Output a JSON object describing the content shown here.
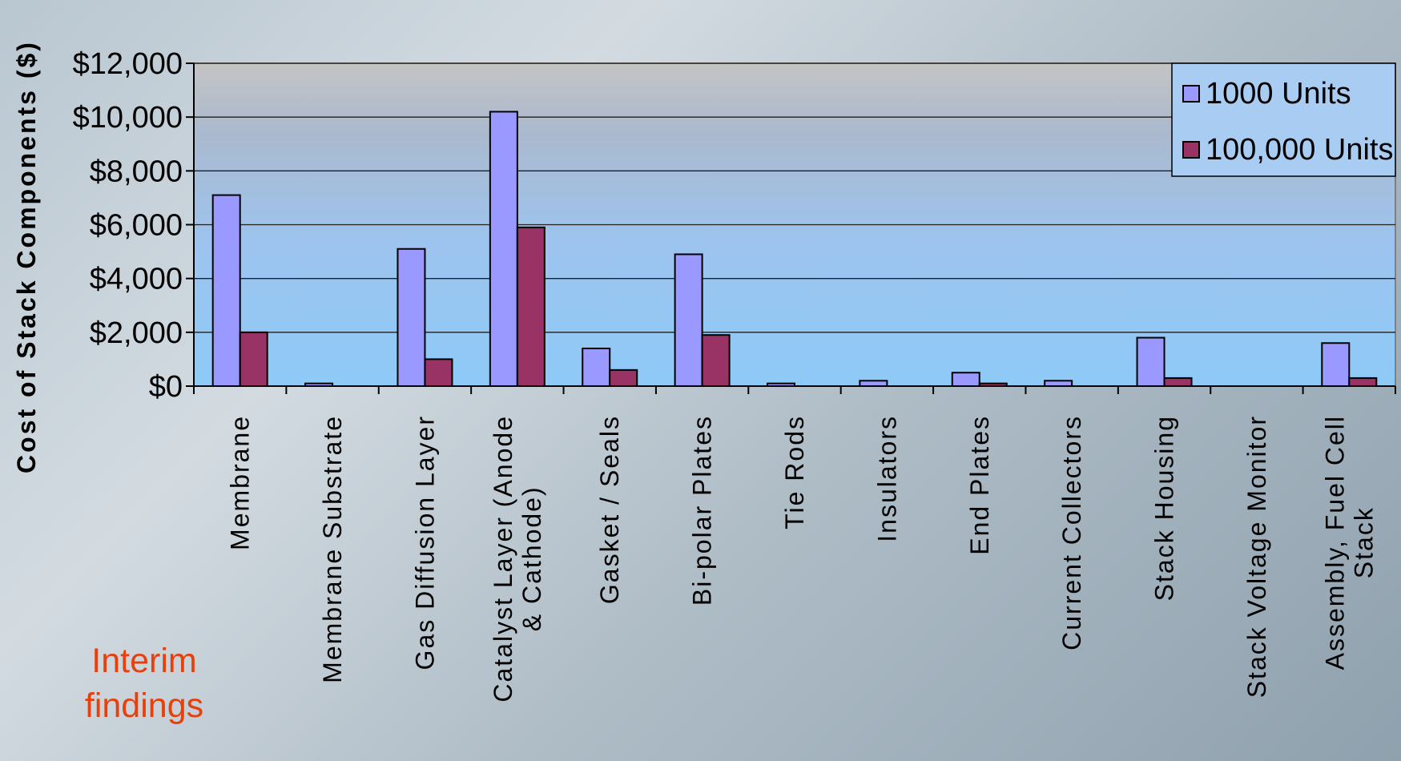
{
  "chart_data": {
    "type": "bar",
    "ylabel": "Cost of Stack Components ($)",
    "ylim": [
      0,
      12000
    ],
    "yticks": [
      0,
      2000,
      4000,
      6000,
      8000,
      10000,
      12000
    ],
    "ytick_labels": [
      "$0",
      "$2,000",
      "$4,000",
      "$6,000",
      "$8,000",
      "$10,000",
      "$12,000"
    ],
    "categories": [
      [
        "Membrane"
      ],
      [
        "Membrane Substrate"
      ],
      [
        "Gas Diffusion Layer"
      ],
      [
        "Catalyst Layer (Anode",
        "& Cathode)"
      ],
      [
        "Gasket / Seals"
      ],
      [
        "Bi-polar Plates"
      ],
      [
        "Tie Rods"
      ],
      [
        "Insulators"
      ],
      [
        "End Plates"
      ],
      [
        "Current Collectors"
      ],
      [
        "Stack Housing"
      ],
      [
        "Stack Voltage Monitor"
      ],
      [
        "Assembly, Fuel Cell",
        "Stack"
      ]
    ],
    "series": [
      {
        "name": "1000 Units",
        "color": "#9999ff",
        "values": [
          7100,
          100,
          5100,
          10200,
          1400,
          4900,
          100,
          200,
          500,
          200,
          1800,
          0,
          1600
        ]
      },
      {
        "name": "100,000 Units",
        "color": "#993366",
        "values": [
          2000,
          0,
          1000,
          5900,
          600,
          1900,
          0,
          0,
          100,
          0,
          300,
          0,
          300
        ]
      }
    ],
    "legend_position": "top-right",
    "grid": true
  },
  "note": {
    "line1": "Interim",
    "line2": "findings"
  }
}
